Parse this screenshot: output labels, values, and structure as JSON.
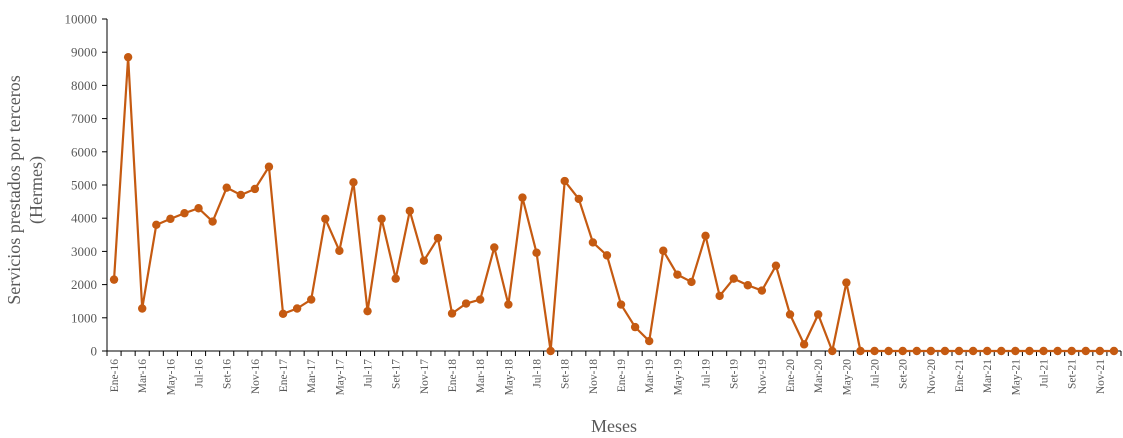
{
  "chart_data": {
    "type": "line",
    "xlabel": "Meses",
    "ylabel_lines": [
      "Servicios prestados por terceros",
      "(Hermes)"
    ],
    "ylim": [
      0,
      10000
    ],
    "yticks": [
      0,
      1000,
      2000,
      3000,
      4000,
      5000,
      6000,
      7000,
      8000,
      9000,
      10000
    ],
    "grid": false,
    "legend": "none",
    "series_color": "#C55A11",
    "x": [
      "Ene-16",
      "Feb-16",
      "Mar-16",
      "Abr-16",
      "May-16",
      "Jun-16",
      "Jul-16",
      "Ago-16",
      "Set-16",
      "Oct-16",
      "Nov-16",
      "Dic-16",
      "Ene-17",
      "Feb-17",
      "Mar-17",
      "Abr-17",
      "May-17",
      "Jun-17",
      "Jul-17",
      "Ago-17",
      "Set-17",
      "Oct-17",
      "Nov-17",
      "Dic-17",
      "Ene-18",
      "Feb-18",
      "Mar-18",
      "Abr-18",
      "May-18",
      "Jun-18",
      "Jul-18",
      "Ago-18",
      "Set-18",
      "Oct-18",
      "Nov-18",
      "Dic-18",
      "Ene-19",
      "Feb-19",
      "Mar-19",
      "Abr-19",
      "May-19",
      "Jun-19",
      "Jul-19",
      "Ago-19",
      "Set-19",
      "Oct-19",
      "Nov-19",
      "Dic-19",
      "Ene-20",
      "Feb-20",
      "Mar-20",
      "Abr-20",
      "May-20",
      "Jun-20",
      "Jul-20",
      "Ago-20",
      "Set-20",
      "Oct-20",
      "Nov-20",
      "Dic-20",
      "Ene-21",
      "Feb-21",
      "Mar-21",
      "Abr-21",
      "May-21",
      "Jun-21",
      "Jul-21",
      "Ago-21",
      "Set-21",
      "Oct-21",
      "Nov-21",
      "Dic-21"
    ],
    "xtick_labels": [
      "Ene-16",
      "Mar-16",
      "May-16",
      "Jul-16",
      "Set-16",
      "Nov-16",
      "Ene-17",
      "Mar-17",
      "May-17",
      "Jul-17",
      "Set-17",
      "Nov-17",
      "Ene-18",
      "Mar-18",
      "May-18",
      "Jul-18",
      "Set-18",
      "Nov-18",
      "Ene-19",
      "Mar-19",
      "May-19",
      "Jul-19",
      "Set-19",
      "Nov-19",
      "Ene-20",
      "Mar-20",
      "May-20",
      "Jul-20",
      "Set-20",
      "Nov-20",
      "Ene-21",
      "Mar-21",
      "May-21",
      "Jul-21",
      "Set-21",
      "Nov-21"
    ],
    "values": [
      2150,
      8850,
      1280,
      3800,
      3980,
      4150,
      4300,
      3900,
      4920,
      4700,
      4880,
      5550,
      1120,
      1280,
      1550,
      3980,
      3020,
      5080,
      1200,
      3980,
      2180,
      4220,
      2720,
      3400,
      1130,
      1430,
      1550,
      3120,
      1400,
      4620,
      2960,
      0,
      5120,
      4580,
      3270,
      2880,
      1400,
      720,
      300,
      3020,
      2300,
      2080,
      3470,
      1660,
      2180,
      1980,
      1820,
      2570,
      1100,
      200,
      1100,
      0,
      2060,
      0,
      0,
      0,
      0,
      0,
      0,
      0,
      0,
      0,
      0,
      0,
      0,
      0,
      0,
      0,
      0,
      0,
      0,
      0
    ]
  }
}
